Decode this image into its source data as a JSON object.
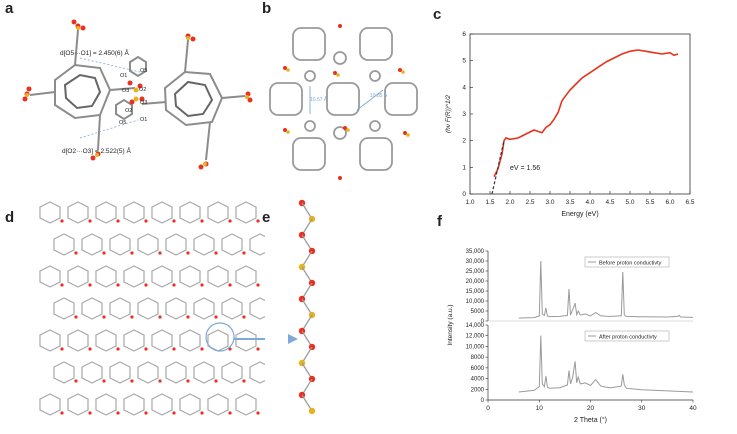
{
  "figure": {
    "panels": [
      "a",
      "b",
      "c",
      "d",
      "e",
      "f"
    ]
  },
  "panel_a": {
    "label_top": "d[O5···O1] = 2.450(6) Å",
    "label_bottom": "d[O2···O3] = 2.522(5) Å",
    "atoms": [
      "O1",
      "O5",
      "O2",
      "O3",
      "O2",
      "O1",
      "O5",
      "O3"
    ]
  },
  "panel_b": {
    "dist1": "10.57 Å",
    "dist2": "10.85 Å"
  },
  "panel_c": {
    "annotation": "eV = 1.56"
  },
  "panel_f": {
    "legend_before": "Before proton conductivty",
    "legend_after": "After proton conductivty"
  },
  "chart_data": [
    {
      "type": "line",
      "panel": "c",
      "xlabel": "Energy (eV)",
      "ylabel": "(hν F(R))^1/2",
      "xlim": [
        1.0,
        6.5
      ],
      "ylim": [
        0,
        6
      ],
      "xticks": [
        "1.0",
        "1.5",
        "2.0",
        "2.5",
        "3.0",
        "3.5",
        "4.0",
        "4.5",
        "5.0",
        "5.5",
        "6.0",
        "6.5"
      ],
      "yticks": [
        "0",
        "1",
        "2",
        "3",
        "4",
        "5",
        "6"
      ],
      "series_color": "#e8321e",
      "x": [
        1.6,
        1.7,
        1.8,
        1.85,
        1.9,
        2.0,
        2.2,
        2.4,
        2.6,
        2.8,
        2.9,
        3.0,
        3.1,
        3.2,
        3.3,
        3.4,
        3.5,
        3.6,
        3.8,
        4.0,
        4.2,
        4.4,
        4.6,
        4.8,
        5.0,
        5.2,
        5.4,
        5.6,
        5.8,
        6.0,
        6.1,
        6.2
      ],
      "y": [
        0.65,
        0.95,
        1.5,
        2.0,
        2.1,
        2.05,
        2.1,
        2.25,
        2.4,
        2.3,
        2.5,
        2.6,
        2.8,
        3.05,
        3.5,
        3.7,
        3.9,
        4.05,
        4.35,
        4.55,
        4.75,
        4.95,
        5.1,
        5.25,
        5.35,
        5.4,
        5.35,
        5.3,
        5.25,
        5.3,
        5.2,
        5.25
      ],
      "tangent": {
        "x": [
          1.55,
          1.85
        ],
        "y": [
          0.0,
          2.0
        ]
      }
    },
    {
      "type": "line",
      "panel": "f-top",
      "series_name": "Before proton conductivty",
      "xlim": [
        0,
        40
      ],
      "ylim": [
        0,
        35000
      ],
      "yticks": [
        "0",
        "5000",
        "10,000",
        "15,000",
        "20,000",
        "25,000",
        "30,000",
        "35,000"
      ],
      "x": [
        6,
        8,
        9,
        10,
        10.3,
        10.6,
        11,
        11.3,
        11.6,
        12,
        14,
        15.5,
        15.8,
        16.1,
        16.5,
        17,
        17.3,
        17.6,
        18,
        19,
        20,
        21,
        22,
        23,
        24,
        26,
        26.3,
        26.6,
        27,
        30,
        35,
        37,
        37.3,
        37.6,
        40
      ],
      "y": [
        1500,
        1600,
        1700,
        2500,
        30000,
        3500,
        2800,
        6500,
        2500,
        2200,
        2300,
        2800,
        16000,
        3000,
        5500,
        9000,
        3200,
        5000,
        3000,
        3500,
        2500,
        4200,
        2600,
        2400,
        2300,
        2600,
        24500,
        3000,
        2300,
        2100,
        2000,
        2300,
        2800,
        2000,
        1800
      ]
    },
    {
      "type": "line",
      "panel": "f-bottom",
      "series_name": "After proton conductivty",
      "xlabel": "2 Theta (°)",
      "xlim": [
        0,
        40
      ],
      "ylim": [
        0,
        14000
      ],
      "xticks": [
        "0",
        "10",
        "20",
        "30",
        "40"
      ],
      "yticks": [
        "0",
        "2000",
        "4000",
        "6000",
        "8000",
        "10,000",
        "12,000",
        "14,000"
      ],
      "x": [
        6,
        8,
        9,
        10,
        10.3,
        10.6,
        11,
        11.3,
        11.6,
        12,
        14,
        15.5,
        15.8,
        16.1,
        16.5,
        17,
        17.3,
        17.6,
        18,
        19,
        20,
        21,
        22,
        23,
        24,
        26,
        26.3,
        26.6,
        27,
        30,
        35,
        40
      ],
      "y": [
        1500,
        1700,
        1800,
        2500,
        12000,
        3000,
        2500,
        4500,
        2400,
        2200,
        2300,
        2800,
        5500,
        3000,
        4200,
        7200,
        3200,
        4300,
        3000,
        3200,
        2700,
        3800,
        2600,
        2400,
        2300,
        2600,
        4800,
        2800,
        2200,
        1900,
        1700,
        1500
      ]
    }
  ],
  "colors": {
    "panel_c_line": "#e8321e",
    "pxrd_line": "#9a9a9a",
    "atom_O": "#e8321e",
    "atom_S": "#e8b21e",
    "carbon": "#8c8c8c",
    "callout": "#7fa8d8"
  }
}
